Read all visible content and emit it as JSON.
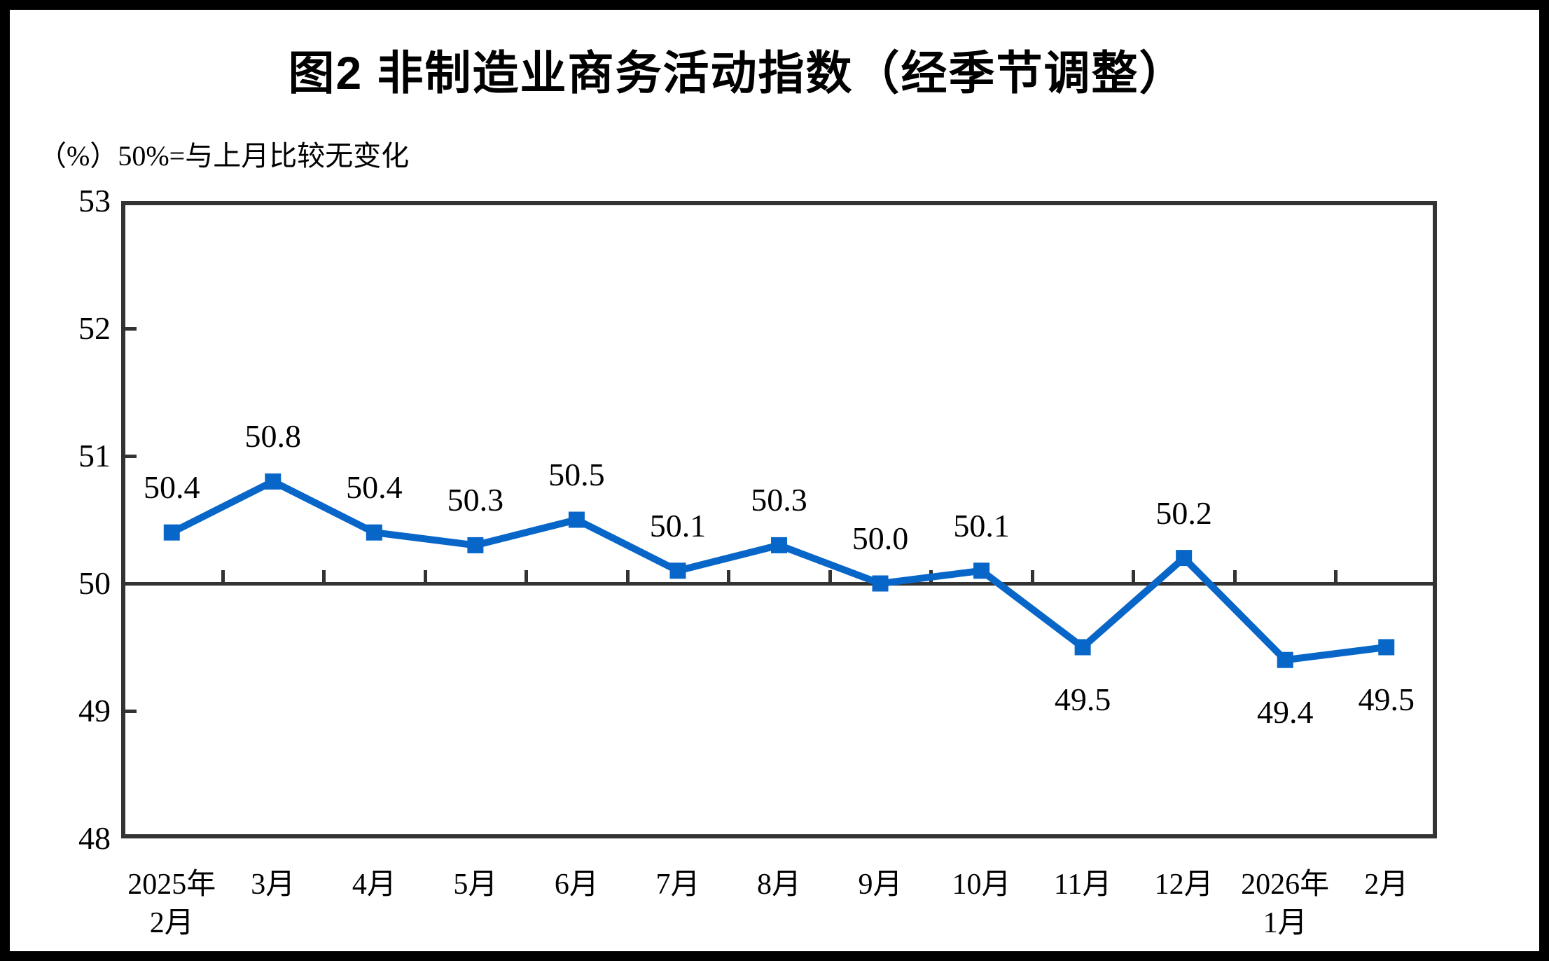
{
  "figure": {
    "title": "图2 非制造业商务活动指数（经季节调整）",
    "unit_note": "（%）50%=与上月比较无变化"
  },
  "chart_data": {
    "type": "line",
    "title": "图2 非制造业商务活动指数（经季节调整）",
    "subtitle": "（%）50%=与上月比较无变化",
    "xlabel": "",
    "ylabel": "%",
    "ylim": [
      48,
      53
    ],
    "yticks": [
      "48",
      "49",
      "50",
      "51",
      "52",
      "53"
    ],
    "grid": false,
    "legend_position": "none",
    "reference_line_y": 50,
    "line_color": "#0766C8",
    "axis_color": "#333333",
    "marker_shape": "square",
    "categories": [
      {
        "line1": "2025年",
        "line2": "2月"
      },
      {
        "line1": "3月",
        "line2": ""
      },
      {
        "line1": "4月",
        "line2": ""
      },
      {
        "line1": "5月",
        "line2": ""
      },
      {
        "line1": "6月",
        "line2": ""
      },
      {
        "line1": "7月",
        "line2": ""
      },
      {
        "line1": "8月",
        "line2": ""
      },
      {
        "line1": "9月",
        "line2": ""
      },
      {
        "line1": "10月",
        "line2": ""
      },
      {
        "line1": "11月",
        "line2": ""
      },
      {
        "line1": "12月",
        "line2": ""
      },
      {
        "line1": "2026年",
        "line2": "1月"
      },
      {
        "line1": "2月",
        "line2": ""
      }
    ],
    "series": [
      {
        "name": "非制造业商务活动指数（经季节调整）",
        "values": [
          50.4,
          50.8,
          50.4,
          50.3,
          50.5,
          50.1,
          50.3,
          50.0,
          50.1,
          49.5,
          50.2,
          49.4,
          49.5
        ],
        "data_labels": [
          "50.4",
          "50.8",
          "50.4",
          "50.3",
          "50.5",
          "50.1",
          "50.3",
          "50.0",
          "50.1",
          "49.5",
          "50.2",
          "49.4",
          "49.5"
        ],
        "label_positions": [
          "above",
          "above",
          "above",
          "above",
          "above",
          "above",
          "above",
          "above",
          "above",
          "below",
          "above",
          "below",
          "below"
        ]
      }
    ]
  }
}
